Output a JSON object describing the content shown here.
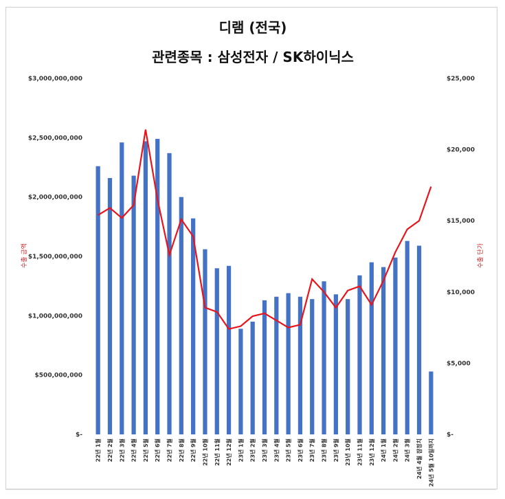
{
  "chart_data": {
    "type": "bar",
    "title": "디램 (전국)",
    "subtitle": "관련종목 : 삼성전자 / SK하이닉스",
    "ylabel": "수출 금액",
    "y2label": "수출 단가",
    "colors": {
      "bar": "#4472c4",
      "line": "#e8141b"
    },
    "ylim": [
      0,
      3000000000
    ],
    "y2lim": [
      0,
      25000
    ],
    "yticks": [
      {
        "v": 0,
        "label": "$-"
      },
      {
        "v": 500000000,
        "label": "$500,000,000"
      },
      {
        "v": 1000000000,
        "label": "$1,000,000,000"
      },
      {
        "v": 1500000000,
        "label": "$1,500,000,000"
      },
      {
        "v": 2000000000,
        "label": "$2,000,000,000"
      },
      {
        "v": 2500000000,
        "label": "$2,500,000,000"
      },
      {
        "v": 3000000000,
        "label": "$3,000,000,000"
      }
    ],
    "y2ticks": [
      {
        "v": 0,
        "label": "$-"
      },
      {
        "v": 5000,
        "label": "$5,000"
      },
      {
        "v": 10000,
        "label": "$10,000"
      },
      {
        "v": 15000,
        "label": "$15,000"
      },
      {
        "v": 20000,
        "label": "$20,000"
      },
      {
        "v": 25000,
        "label": "$25,000"
      }
    ],
    "categories": [
      "22년 1월",
      "22년 2월",
      "22년 3월",
      "22년 4월",
      "22년 5월",
      "22년 6월",
      "22년 7월",
      "22년 8월",
      "22년 9월",
      "22년 10월",
      "22년 11월",
      "22년 12월",
      "23년 1월",
      "23년 2월",
      "23년 3월",
      "23년 4월",
      "23년 5월",
      "23년 6월",
      "23년 7월",
      "23년 8월",
      "23년 9월",
      "23년 10월",
      "23년 11월",
      "23년 12월",
      "24년 1월",
      "24년 2월",
      "24년 3월",
      "24년 4월 잠정치",
      "24년 5월 10일까지"
    ],
    "series": [
      {
        "type": "bar",
        "values": [
          2260000000,
          2160000000,
          2460000000,
          2180000000,
          2470000000,
          2490000000,
          2370000000,
          2000000000,
          1820000000,
          1560000000,
          1400000000,
          1420000000,
          890000000,
          950000000,
          1130000000,
          1160000000,
          1190000000,
          1160000000,
          1140000000,
          1290000000,
          1180000000,
          1140000000,
          1340000000,
          1450000000,
          1410000000,
          1490000000,
          1630000000,
          1590000000,
          530000000
        ]
      },
      {
        "type": "line",
        "axis": "right",
        "values": [
          15400,
          15900,
          15200,
          16100,
          21400,
          16500,
          12600,
          15100,
          13900,
          8900,
          8600,
          7400,
          7600,
          8300,
          8500,
          8000,
          7500,
          7700,
          10900,
          10000,
          8900,
          10100,
          10400,
          9100,
          10800,
          12800,
          14400,
          15000,
          17400
        ]
      }
    ]
  }
}
